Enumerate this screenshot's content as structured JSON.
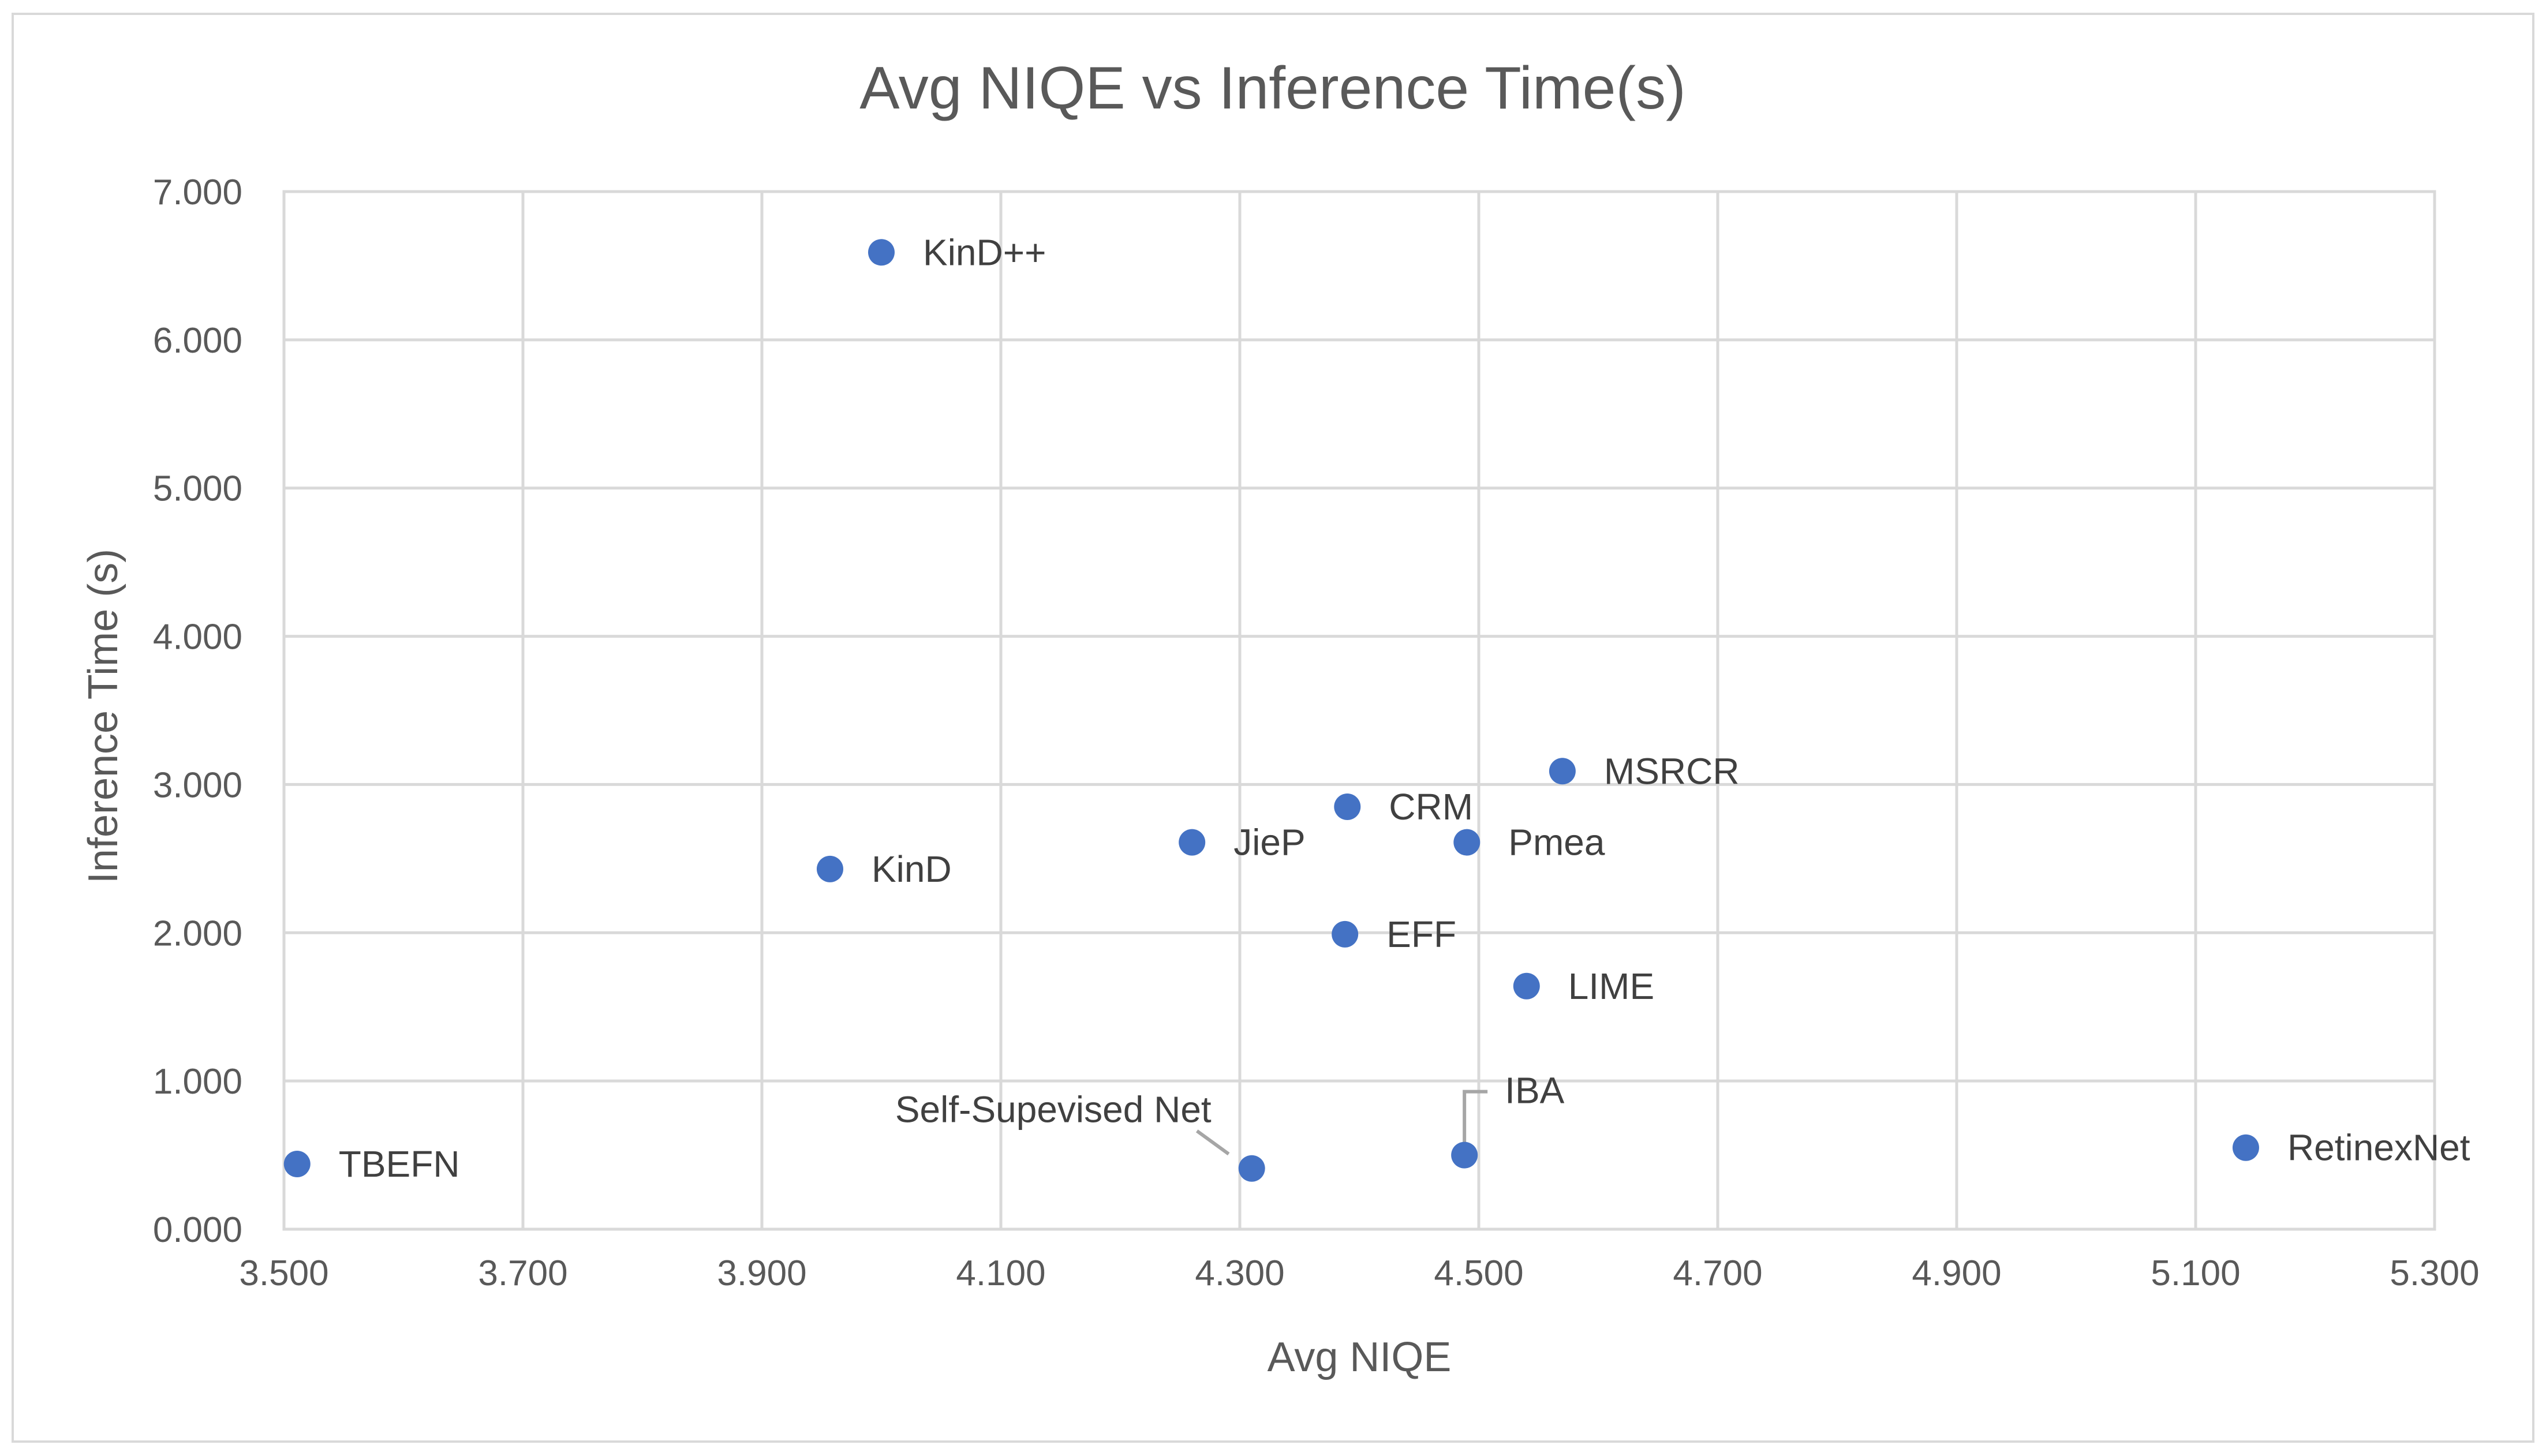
{
  "chart_data": {
    "type": "scatter",
    "title": "Avg NIQE vs Inference Time(s)",
    "xlabel": "Avg NIQE",
    "ylabel": "Inference Time (s)",
    "xlim": [
      3.5,
      5.3
    ],
    "ylim": [
      0,
      7
    ],
    "x_ticks": [
      "3.500",
      "3.700",
      "3.900",
      "4.100",
      "4.300",
      "4.500",
      "4.700",
      "4.900",
      "5.100",
      "5.300"
    ],
    "y_ticks": [
      "0.000",
      "1.000",
      "2.000",
      "3.000",
      "4.000",
      "5.000",
      "6.000",
      "7.000"
    ],
    "grid": true,
    "marker_color": "#4472c4",
    "points": [
      {
        "label": "KinD++",
        "x": 4.0,
        "y": 6.59
      },
      {
        "label": "MSRCR",
        "x": 4.57,
        "y": 3.09
      },
      {
        "label": "CRM",
        "x": 4.39,
        "y": 2.85
      },
      {
        "label": "JieP",
        "x": 4.26,
        "y": 2.61
      },
      {
        "label": "Pmea",
        "x": 4.49,
        "y": 2.61
      },
      {
        "label": "KinD",
        "x": 3.957,
        "y": 2.43
      },
      {
        "label": "EFF",
        "x": 4.388,
        "y": 1.99
      },
      {
        "label": "LIME",
        "x": 4.54,
        "y": 1.64
      },
      {
        "label": "IBA",
        "x": 4.488,
        "y": 0.5
      },
      {
        "label": "Self-Supevised Net",
        "x": 4.31,
        "y": 0.41
      },
      {
        "label": "TBEFN",
        "x": 3.511,
        "y": 0.44
      },
      {
        "label": "RetinexNet",
        "x": 5.142,
        "y": 0.55
      }
    ]
  }
}
